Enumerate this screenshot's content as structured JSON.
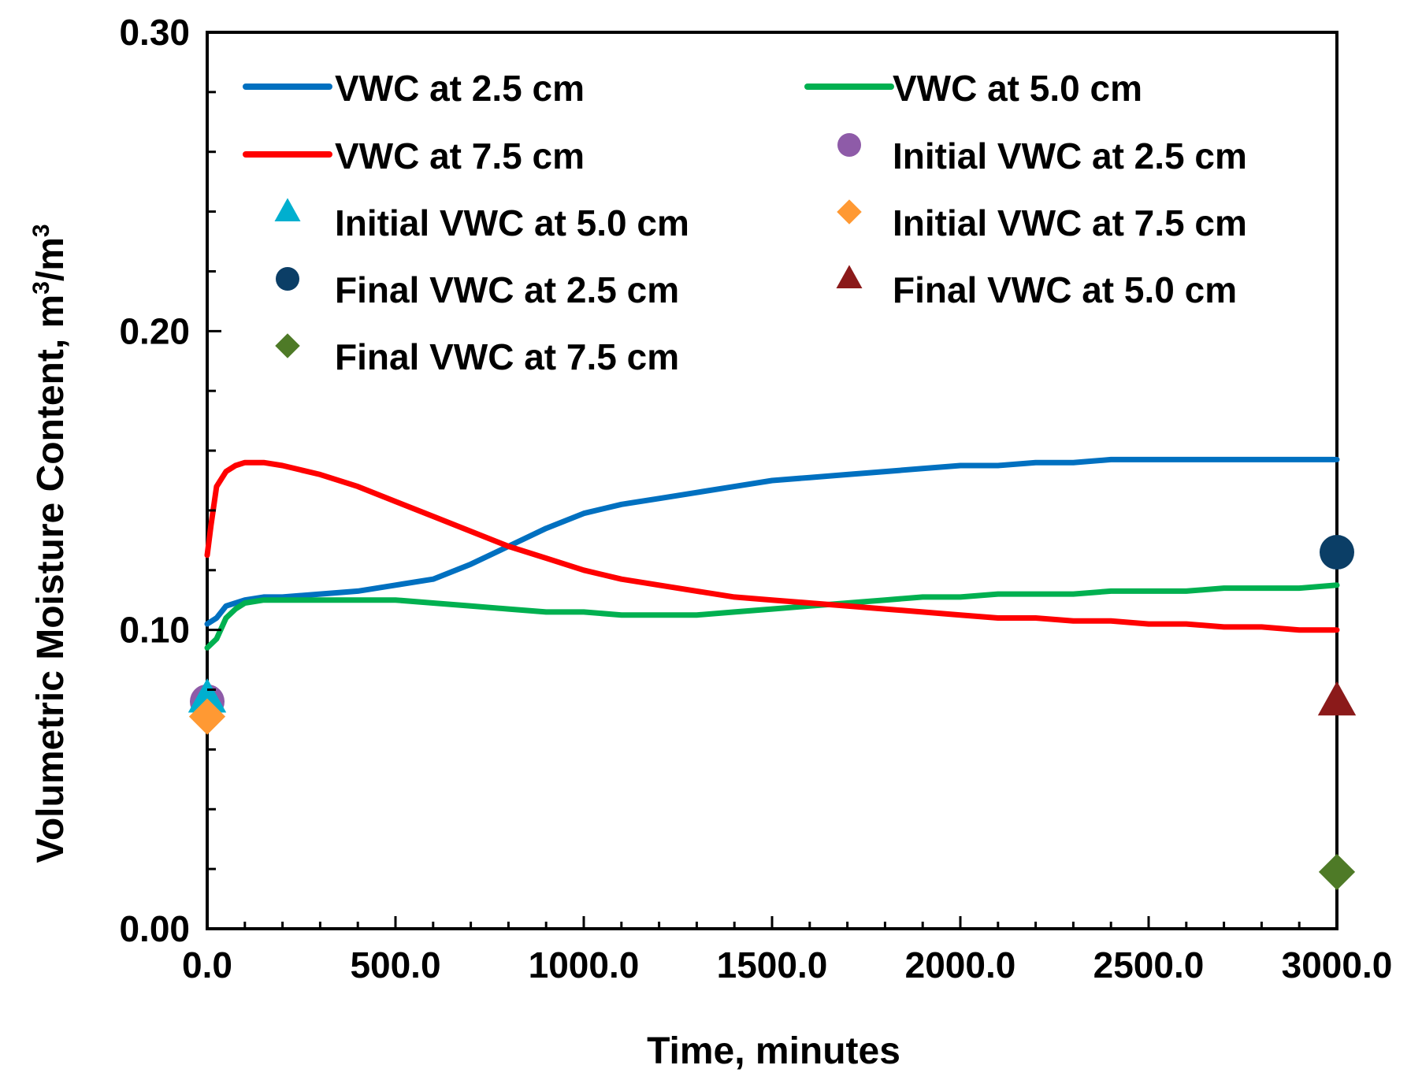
{
  "chart_data": {
    "type": "line",
    "title": "",
    "xlabel": "Time, minutes",
    "ylabel_main": "Volumetric Moisture Content, m",
    "ylabel_sup1": "3",
    "ylabel_mid": "/m",
    "ylabel_sup2": "3",
    "xlim": [
      0,
      3000
    ],
    "ylim": [
      0,
      0.3
    ],
    "x_ticks": [
      0,
      500,
      1000,
      1500,
      2000,
      2500,
      3000
    ],
    "x_tick_labels": [
      "0.0",
      "500.0",
      "1000.0",
      "1500.0",
      "2000.0",
      "2500.0",
      "3000.0"
    ],
    "y_ticks": [
      0,
      0.1,
      0.2,
      0.3
    ],
    "y_tick_labels": [
      "0.00",
      "0.10",
      "0.20",
      "0.30"
    ],
    "grid": false,
    "legend_position": "top",
    "series": [
      {
        "name": "VWC at 2.5 cm",
        "color": "#0070C0",
        "x": [
          0,
          25,
          50,
          100,
          150,
          200,
          300,
          400,
          500,
          600,
          700,
          800,
          900,
          1000,
          1100,
          1200,
          1300,
          1400,
          1500,
          1600,
          1700,
          1800,
          1900,
          2000,
          2100,
          2200,
          2300,
          2400,
          2500,
          2600,
          2700,
          2800,
          2900,
          3000
        ],
        "values": [
          0.102,
          0.104,
          0.108,
          0.11,
          0.111,
          0.111,
          0.112,
          0.113,
          0.115,
          0.117,
          0.122,
          0.128,
          0.134,
          0.139,
          0.142,
          0.144,
          0.146,
          0.148,
          0.15,
          0.151,
          0.152,
          0.153,
          0.154,
          0.155,
          0.155,
          0.156,
          0.156,
          0.157,
          0.157,
          0.157,
          0.157,
          0.157,
          0.157,
          0.157
        ]
      },
      {
        "name": "VWC at 5.0 cm",
        "color": "#00B050",
        "x": [
          0,
          25,
          50,
          75,
          100,
          150,
          200,
          300,
          400,
          500,
          600,
          700,
          800,
          900,
          1000,
          1100,
          1200,
          1300,
          1400,
          1500,
          1600,
          1700,
          1800,
          1900,
          2000,
          2100,
          2200,
          2300,
          2400,
          2500,
          2600,
          2700,
          2800,
          2900,
          3000
        ],
        "values": [
          0.094,
          0.097,
          0.104,
          0.107,
          0.109,
          0.11,
          0.11,
          0.11,
          0.11,
          0.11,
          0.109,
          0.108,
          0.107,
          0.106,
          0.106,
          0.105,
          0.105,
          0.105,
          0.106,
          0.107,
          0.108,
          0.109,
          0.11,
          0.111,
          0.111,
          0.112,
          0.112,
          0.112,
          0.113,
          0.113,
          0.113,
          0.114,
          0.114,
          0.114,
          0.115
        ]
      },
      {
        "name": "VWC at 7.5 cm",
        "color": "#FF0000",
        "x": [
          0,
          10,
          25,
          50,
          75,
          100,
          130,
          150,
          200,
          300,
          400,
          500,
          600,
          700,
          800,
          900,
          1000,
          1100,
          1200,
          1300,
          1400,
          1500,
          1600,
          1700,
          1800,
          1900,
          2000,
          2100,
          2200,
          2300,
          2400,
          2500,
          2600,
          2700,
          2800,
          2900,
          3000
        ],
        "values": [
          0.125,
          0.135,
          0.148,
          0.153,
          0.155,
          0.156,
          0.156,
          0.156,
          0.155,
          0.152,
          0.148,
          0.143,
          0.138,
          0.133,
          0.128,
          0.124,
          0.12,
          0.117,
          0.115,
          0.113,
          0.111,
          0.11,
          0.109,
          0.108,
          0.107,
          0.106,
          0.105,
          0.104,
          0.104,
          0.103,
          0.103,
          0.102,
          0.102,
          0.101,
          0.101,
          0.1,
          0.1
        ]
      }
    ],
    "points": [
      {
        "name": "Initial VWC at 2.5 cm",
        "x": 0,
        "y": 0.076,
        "marker": "circle",
        "color": "#8E5BA8"
      },
      {
        "name": "Initial VWC at 5.0 cm",
        "x": 0,
        "y": 0.077,
        "marker": "triangle",
        "color": "#00AFCF"
      },
      {
        "name": "Initial VWC at 7.5 cm",
        "x": 0,
        "y": 0.071,
        "marker": "diamond",
        "color": "#FF9933"
      },
      {
        "name": "Final VWC at 2.5 cm",
        "x": 3000,
        "y": 0.126,
        "marker": "circle",
        "color": "#0B3E66"
      },
      {
        "name": "Final VWC at 5.0 cm",
        "x": 3000,
        "y": 0.076,
        "marker": "triangle",
        "color": "#8B1A1A"
      },
      {
        "name": "Final VWC at 7.5 cm",
        "x": 3000,
        "y": 0.019,
        "marker": "diamond",
        "color": "#4E7A27"
      }
    ],
    "legend": [
      {
        "label": "VWC at 2.5 cm",
        "kind": "line",
        "color": "#0070C0"
      },
      {
        "label": "VWC at 5.0 cm",
        "kind": "line",
        "color": "#00B050"
      },
      {
        "label": "VWC at 7.5 cm",
        "kind": "line",
        "color": "#FF0000"
      },
      {
        "label": "Initial VWC at 2.5 cm",
        "kind": "circle",
        "color": "#8E5BA8"
      },
      {
        "label": "Initial VWC at 5.0 cm",
        "kind": "triangle",
        "color": "#00AFCF"
      },
      {
        "label": "Initial VWC at 7.5 cm",
        "kind": "diamond",
        "color": "#FF9933"
      },
      {
        "label": "Final VWC at 2.5 cm",
        "kind": "circle",
        "color": "#0B3E66"
      },
      {
        "label": "Final VWC at 5.0 cm",
        "kind": "triangle",
        "color": "#8B1A1A"
      },
      {
        "label": "Final VWC at 7.5 cm",
        "kind": "diamond",
        "color": "#4E7A27"
      }
    ]
  }
}
